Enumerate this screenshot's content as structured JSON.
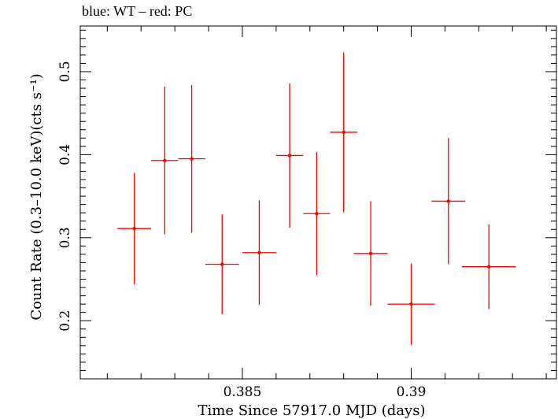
{
  "header": {
    "subtitle": "blue: WT – red: PC"
  },
  "chart_data": {
    "type": "scatter",
    "title": "blue: WT – red: PC",
    "xlabel": "Time Since 57917.0 MJD (days)",
    "ylabel": "Count Rate (0.3–10.0 keV)(cts s⁻¹)",
    "xlim": [
      0.3802,
      0.3943
    ],
    "ylim": [
      0.13,
      0.555
    ],
    "x_ticks": [
      0.385,
      0.39
    ],
    "x_tick_labels": [
      "0.385",
      "0.39"
    ],
    "y_ticks": [
      0.2,
      0.3,
      0.4,
      0.5
    ],
    "y_tick_labels": [
      "0.2",
      "0.3",
      "0.4",
      "0.5"
    ],
    "grid": false,
    "series": [
      {
        "name": "PC",
        "color": "#ff0000",
        "points": [
          {
            "x": 0.3818,
            "xerr": 0.0005,
            "y": 0.311,
            "yerr": 0.067
          },
          {
            "x": 0.3827,
            "xerr": 0.0004,
            "y": 0.393,
            "yerr": 0.089
          },
          {
            "x": 0.3835,
            "xerr": 0.0004,
            "y": 0.395,
            "yerr": 0.089
          },
          {
            "x": 0.3844,
            "xerr": 0.0005,
            "y": 0.268,
            "yerr": 0.06
          },
          {
            "x": 0.3855,
            "xerr": 0.0005,
            "y": 0.282,
            "yerr": 0.063
          },
          {
            "x": 0.3864,
            "xerr": 0.0004,
            "y": 0.399,
            "yerr": 0.087
          },
          {
            "x": 0.3872,
            "xerr": 0.0004,
            "y": 0.329,
            "yerr": 0.074
          },
          {
            "x": 0.388,
            "xerr": 0.0004,
            "y": 0.427,
            "yerr": 0.096
          },
          {
            "x": 0.3888,
            "xerr": 0.0005,
            "y": 0.281,
            "yerr": 0.063
          },
          {
            "x": 0.39,
            "xerr": 0.0007,
            "y": 0.22,
            "yerr": 0.049
          },
          {
            "x": 0.3911,
            "xerr": 0.0005,
            "y": 0.344,
            "yerr": 0.076
          },
          {
            "x": 0.3923,
            "xerr": 0.0008,
            "y": 0.265,
            "yerr": 0.051
          }
        ]
      },
      {
        "name": "WT",
        "color": "#0000ff",
        "points": []
      }
    ]
  }
}
